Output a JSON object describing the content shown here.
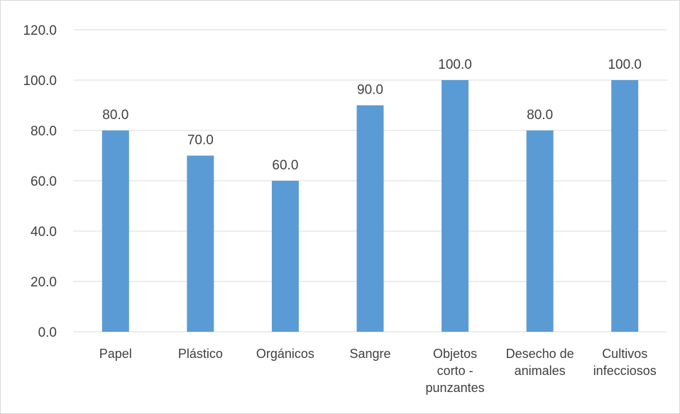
{
  "chart_data": {
    "type": "bar",
    "categories": [
      "Papel",
      "Plástico",
      "Orgánicos",
      "Sangre",
      "Objetos corto - punzantes",
      "Desecho de animales",
      "Cultivos infecciosos"
    ],
    "category_lines": [
      [
        "Papel"
      ],
      [
        "Plástico"
      ],
      [
        "Orgánicos"
      ],
      [
        "Sangre"
      ],
      [
        "Objetos",
        "corto -",
        "punzantes"
      ],
      [
        "Desecho de",
        "animales"
      ],
      [
        "Cultivos",
        "infecciosos"
      ]
    ],
    "values": [
      80.0,
      70.0,
      60.0,
      90.0,
      100.0,
      80.0,
      100.0
    ],
    "value_labels": [
      "80.0",
      "70.0",
      "60.0",
      "90.0",
      "100.0",
      "80.0",
      "100.0"
    ],
    "y_ticks": [
      0,
      20,
      40,
      60,
      80,
      100,
      120
    ],
    "y_tick_labels": [
      "0.0",
      "20.0",
      "40.0",
      "60.0",
      "80.0",
      "100.0",
      "120.0"
    ],
    "ylim": [
      0,
      120
    ],
    "title": "",
    "xlabel": "",
    "ylabel": "",
    "grid": true,
    "legend": "none",
    "colors": {
      "bar": "#5b9bd5",
      "grid": "#d9d9d9",
      "text": "#404040",
      "border": "#d9d9d9"
    }
  }
}
